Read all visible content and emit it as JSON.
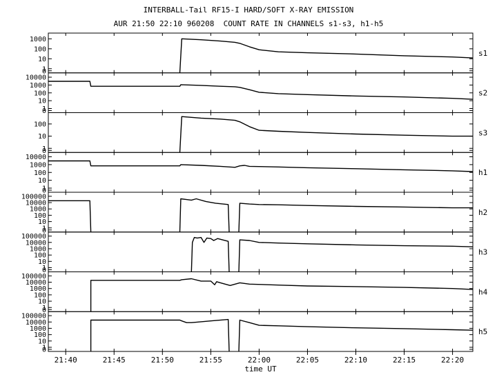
{
  "figure": {
    "title": "INTERBALL-Tail RF15-I HARD/SOFT X-RAY EMISSION",
    "subtitle": "AUR 21:50 22:10 960208  COUNT RATE IN CHANNELS s1-s3, h1-h5",
    "xlabel": "time UT"
  },
  "chart_data": {
    "type": "line",
    "layout": "stacked-panels",
    "x_ticks": [
      "21:40",
      "21:45",
      "21:50",
      "21:55",
      "22:00",
      "22:05",
      "22:10",
      "22:15",
      "22:20"
    ],
    "x_tick_minutes": [
      40,
      45,
      50,
      55,
      60,
      65,
      70,
      75,
      80
    ],
    "xlim_minutes": [
      38.2,
      82.1
    ],
    "x_note": "minutes after 21:00 UT",
    "y_scale": "log",
    "grid": false,
    "panels": [
      {
        "name": "s1",
        "yticks": [
          "1000",
          "100",
          "10",
          "1",
          "0"
        ],
        "ytick_decades": [
          3,
          2,
          1,
          0
        ],
        "ymax_decade": 3.3,
        "segments": [
          {
            "x": [
              42.6,
              42.6
            ],
            "y": [
              0,
              0
            ]
          },
          {
            "x": [
              51.8,
              52.0,
              54.0,
              56.0,
              57.5,
              58.0,
              59.0,
              60.0,
              62.0,
              65.0,
              70.0,
              75.0,
              80.0,
              82.1
            ],
            "y": [
              0,
              1000,
              800,
              600,
              450,
              350,
              160,
              80,
              50,
              40,
              30,
              20,
              15,
              12
            ]
          }
        ]
      },
      {
        "name": "s2",
        "yticks": [
          "10000",
          "1000",
          "100",
          "10",
          "1",
          "0"
        ],
        "ytick_decades": [
          4,
          3,
          2,
          1,
          0
        ],
        "ymax_decade": 4.2,
        "segments": [
          {
            "x": [
              38.2,
              42.5,
              42.6,
              51.8,
              51.9,
              54.0,
              56.0,
              57.5,
              58.0,
              59.0,
              60.0,
              62.0,
              65.0,
              70.0,
              75.0,
              80.0,
              82.1
            ],
            "y": [
              3000,
              3000,
              700,
              700,
              1100,
              900,
              700,
              600,
              500,
              250,
              120,
              80,
              60,
              40,
              30,
              20,
              15
            ]
          }
        ]
      },
      {
        "name": "s3",
        "yticks": [
          "100",
          "10",
          "1",
          "0"
        ],
        "ytick_decades": [
          2,
          1,
          0
        ],
        "ymax_decade": 2.7,
        "segments": [
          {
            "x": [
              42.6,
              42.6
            ],
            "y": [
              0,
              0
            ]
          },
          {
            "x": [
              51.8,
              52.0,
              54.0,
              56.0,
              57.5,
              58.0,
              59.0,
              60.0,
              62.0,
              65.0,
              70.0,
              75.0,
              80.0,
              82.1
            ],
            "y": [
              0,
              400,
              300,
              250,
              200,
              150,
              60,
              30,
              25,
              20,
              15,
              12,
              10,
              10
            ]
          }
        ]
      },
      {
        "name": "h1",
        "yticks": [
          "10000",
          "1000",
          "100",
          "10",
          "1",
          "0"
        ],
        "ytick_decades": [
          4,
          3,
          2,
          1,
          0
        ],
        "ymax_decade": 4.2,
        "segments": [
          {
            "x": [
              38.2,
              42.5,
              42.6,
              51.8,
              51.9,
              54.0,
              56.0,
              57.5,
              58.0,
              58.5,
              59.0,
              62.0,
              65.0,
              70.0,
              75.0,
              80.0,
              82.1
            ],
            "y": [
              3000,
              3000,
              700,
              700,
              1000,
              800,
              600,
              450,
              700,
              800,
              600,
              500,
              400,
              300,
              220,
              160,
              130
            ]
          }
        ]
      },
      {
        "name": "h2",
        "yticks": [
          "100000",
          "10000",
          "1000",
          "100",
          "10",
          "1",
          "0"
        ],
        "ytick_decades": [
          5,
          4,
          3,
          2,
          1,
          0
        ],
        "ymax_decade": 5.2,
        "segments": [
          {
            "x": [
              38.2,
              42.5,
              42.6
            ],
            "y": [
              20000,
              20000,
              0
            ]
          },
          {
            "x": [
              51.8,
              51.9,
              52.5,
              53.0,
              53.5,
              54.5,
              55.5,
              56.8,
              56.9
            ],
            "y": [
              0,
              40000,
              30000,
              25000,
              40000,
              15000,
              8000,
              5000,
              0
            ]
          },
          {
            "x": [
              57.9,
              58.0,
              59.0,
              60.0,
              62.0,
              65.0,
              70.0,
              75.0,
              80.0,
              82.1
            ],
            "y": [
              0,
              8000,
              6000,
              5000,
              4500,
              3500,
              2500,
              2000,
              1500,
              1500
            ]
          }
        ]
      },
      {
        "name": "h3",
        "yticks": [
          "100000",
          "10000",
          "1000",
          "100",
          "10",
          "1",
          "0"
        ],
        "ytick_decades": [
          5,
          4,
          3,
          2,
          1,
          0
        ],
        "ymax_decade": 5.2,
        "segments": [
          {
            "x": [
              53.0,
              53.1,
              53.3,
              53.6,
              54.0,
              54.3,
              54.6,
              55.0,
              55.3,
              55.7,
              56.8,
              56.9
            ],
            "y": [
              0,
              10000,
              60000,
              50000,
              60000,
              10000,
              50000,
              40000,
              20000,
              40000,
              15000,
              0
            ]
          },
          {
            "x": [
              57.9,
              58.0,
              59.0,
              60.0,
              62.0,
              65.0,
              70.0,
              75.0,
              80.0,
              82.1
            ],
            "y": [
              0,
              25000,
              20000,
              10000,
              8000,
              6000,
              4000,
              3000,
              2500,
              2000
            ]
          }
        ]
      },
      {
        "name": "h4",
        "yticks": [
          "100000",
          "10000",
          "1000",
          "100",
          "10",
          "1",
          "0"
        ],
        "ytick_decades": [
          5,
          4,
          3,
          2,
          1,
          0
        ],
        "ymax_decade": 5.2,
        "segments": [
          {
            "x": [
              42.6,
              42.6,
              51.8,
              52.0,
              53.0,
              54.0,
              55.0,
              55.4,
              55.6,
              56.0,
              57.0,
              58.0,
              59.0,
              62.0,
              65.0,
              70.0,
              75.0,
              80.0,
              82.1
            ],
            "y": [
              0,
              20000,
              20000,
              25000,
              35000,
              15000,
              15000,
              4000,
              12000,
              8000,
              3000,
              8000,
              5000,
              3500,
              2500,
              2000,
              1500,
              1000,
              700
            ]
          }
        ]
      },
      {
        "name": "h5",
        "yticks": [
          "100000",
          "10000",
          "1000",
          "100",
          "10",
          "1",
          "0"
        ],
        "ytick_decades": [
          5,
          4,
          3,
          2,
          1,
          0
        ],
        "ymax_decade": 5.2,
        "segments": [
          {
            "x": [
              42.6,
              42.6,
              51.8,
              52.0,
              52.5,
              53.0,
              55.0,
              56.8,
              56.9
            ],
            "y": [
              0,
              20000,
              20000,
              15000,
              8000,
              8000,
              15000,
              25000,
              0
            ]
          },
          {
            "x": [
              57.9,
              58.0,
              59.0,
              60.0,
              62.0,
              65.0,
              70.0,
              75.0,
              80.0,
              82.1
            ],
            "y": [
              0,
              20000,
              8000,
              3000,
              2500,
              1800,
              1200,
              900,
              600,
              500
            ]
          }
        ]
      }
    ]
  }
}
